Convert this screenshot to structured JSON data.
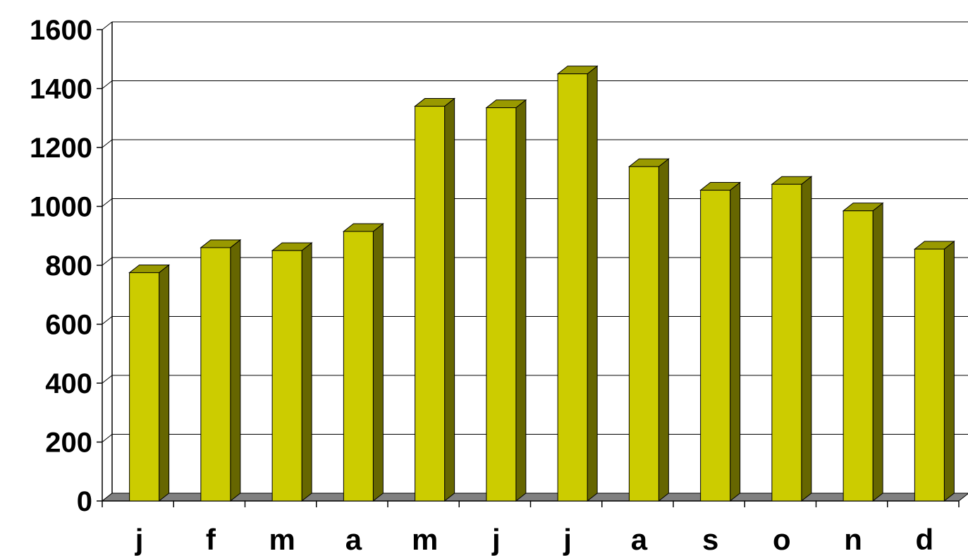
{
  "chart_data": {
    "type": "bar",
    "style": "3d-column",
    "categories": [
      "j",
      "f",
      "m",
      "a",
      "m",
      "j",
      "j",
      "a",
      "s",
      "o",
      "n",
      "d"
    ],
    "values": [
      775,
      860,
      850,
      915,
      1340,
      1335,
      1450,
      1135,
      1055,
      1075,
      985,
      855
    ],
    "ylim": [
      0,
      1600
    ],
    "yticks": [
      "0",
      "200",
      "400",
      "600",
      "800",
      "1000",
      "1200",
      "1400",
      "1600"
    ],
    "title": "",
    "xlabel": "",
    "ylabel": "",
    "grid": true,
    "legend": "none",
    "colors": {
      "bar_front": "#cccc00",
      "bar_top": "#999900",
      "bar_side": "#666600",
      "floor": "#808080",
      "gridline": "#000000",
      "axis": "#000000"
    }
  }
}
